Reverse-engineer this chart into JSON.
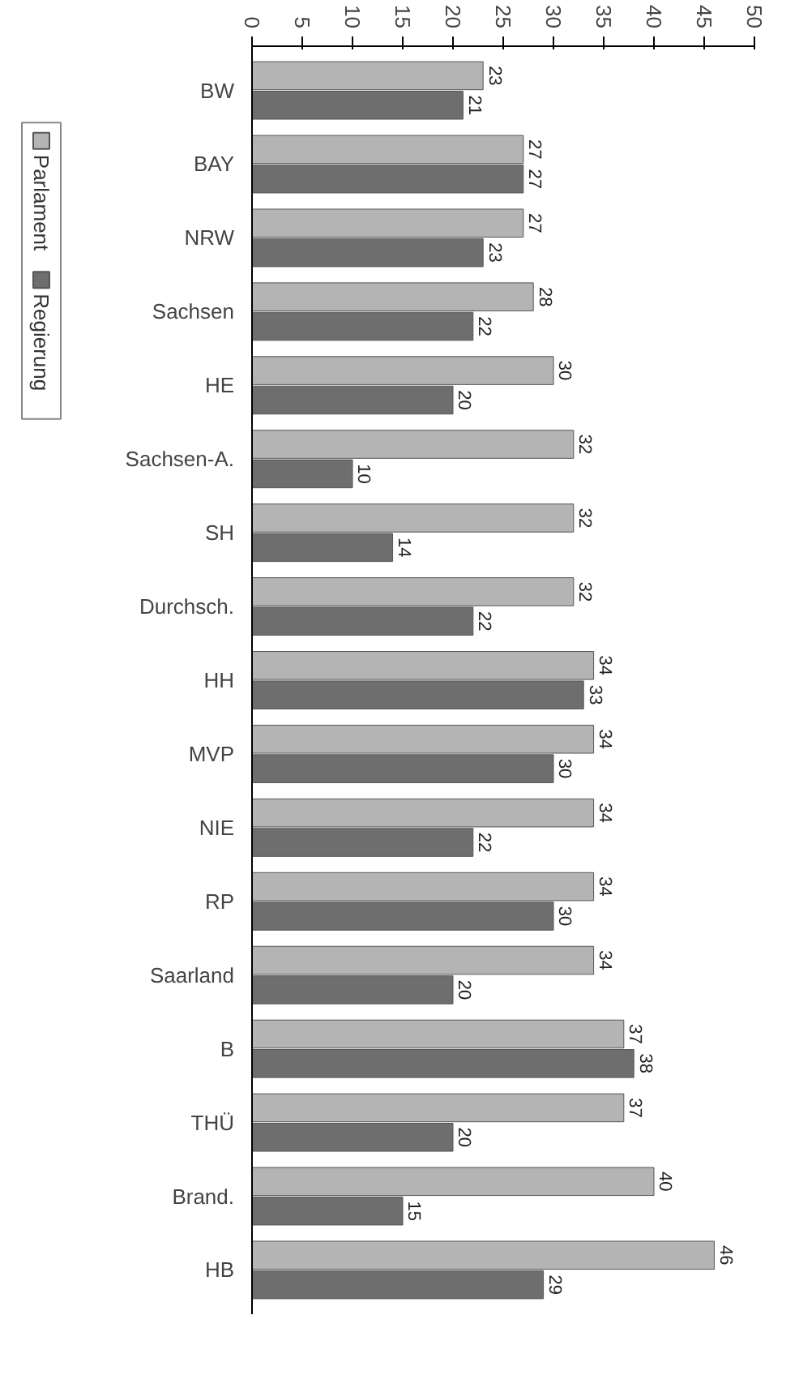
{
  "chart_data": {
    "type": "bar",
    "orientation": "horizontal",
    "categories": [
      "BW",
      "BAY",
      "NRW",
      "Sachsen",
      "HE",
      "Sachsen-A.",
      "SH",
      "Durchsch.",
      "HH",
      "MVP",
      "NIE",
      "RP",
      "Saarland",
      "B",
      "THÜ",
      "Brand.",
      "HB"
    ],
    "series": [
      {
        "name": "Parlament",
        "color": "#b4b4b4",
        "values": [
          23,
          27,
          27,
          28,
          30,
          32,
          32,
          32,
          34,
          34,
          34,
          34,
          34,
          37,
          37,
          40,
          46
        ]
      },
      {
        "name": "Regierung",
        "color": "#6e6e6e",
        "values": [
          21,
          27,
          23,
          22,
          20,
          10,
          14,
          22,
          33,
          30,
          22,
          30,
          20,
          38,
          20,
          15,
          29
        ]
      }
    ],
    "xlim": [
      0,
      50
    ],
    "xticks": [
      0,
      5,
      10,
      15,
      20,
      25,
      30,
      35,
      40,
      45,
      50
    ],
    "data_labels": true,
    "legend": "left",
    "grid": false
  }
}
